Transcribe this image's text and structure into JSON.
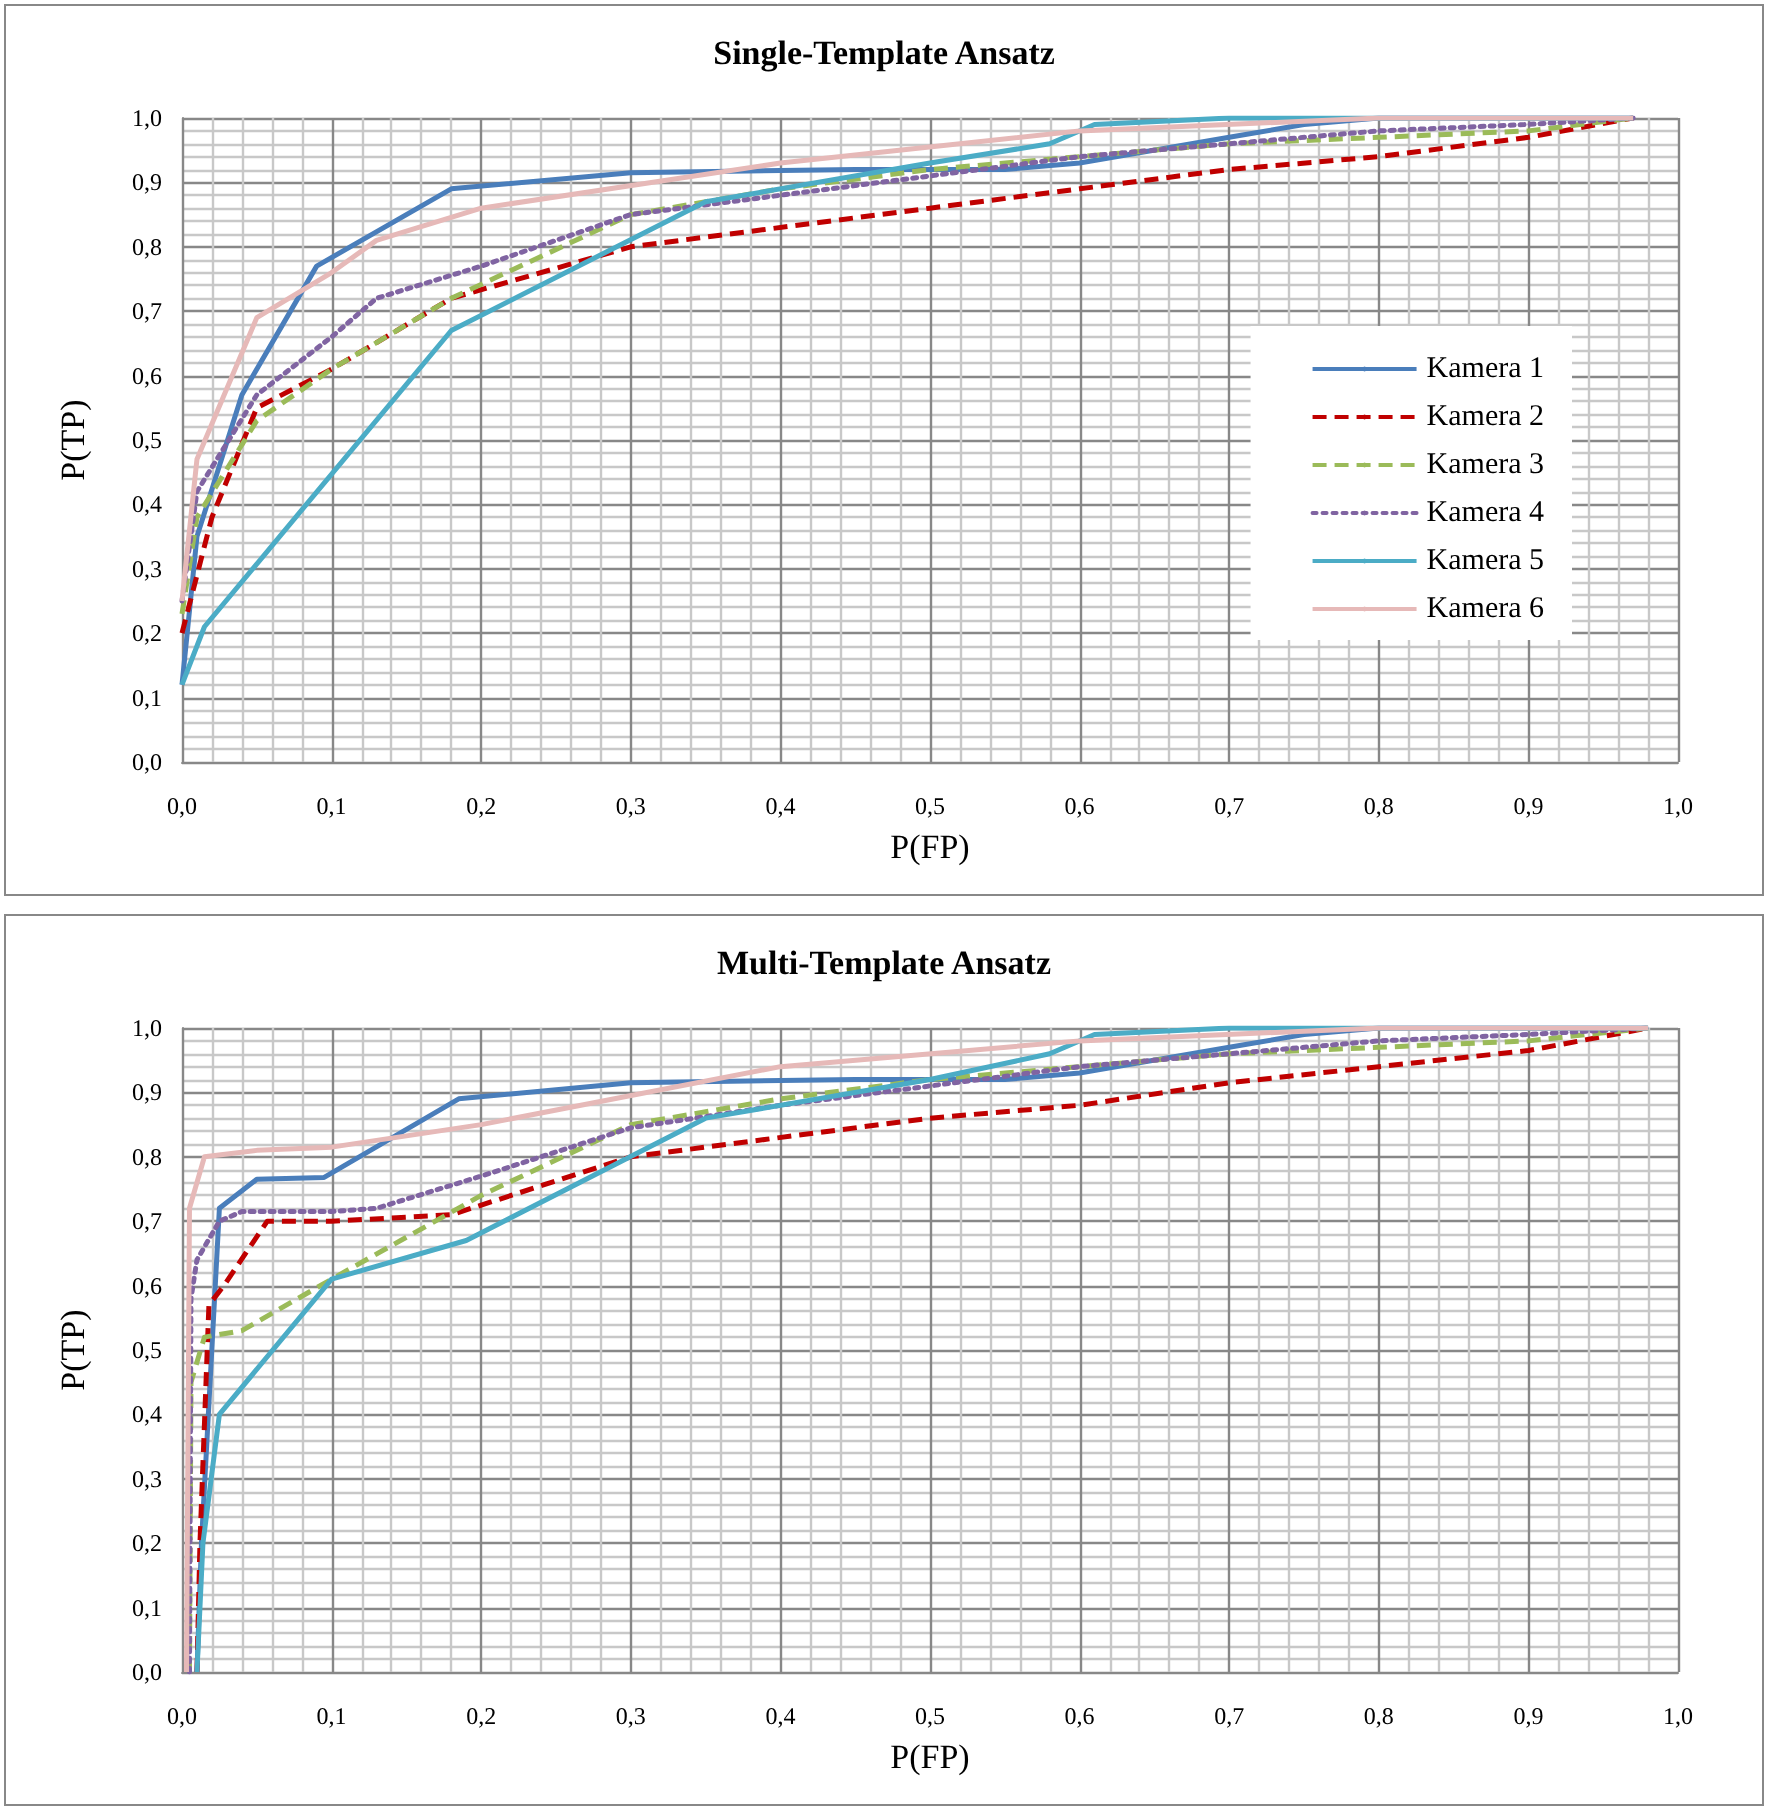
{
  "chart_data": [
    {
      "type": "line",
      "title": "Single-Template Ansatz",
      "xlabel": "P(FP)",
      "ylabel": "P(TP)",
      "xlim": [
        0,
        1
      ],
      "ylim": [
        0,
        1
      ],
      "xticks": [
        {
          "value": 0,
          "label": "0,0"
        },
        {
          "value": 0.1,
          "label": "0,1"
        },
        {
          "value": 0.2,
          "label": "0,2"
        },
        {
          "value": 0.3,
          "label": "0,3"
        },
        {
          "value": 0.4,
          "label": "0,4"
        },
        {
          "value": 0.5,
          "label": "0,5"
        },
        {
          "value": 0.6,
          "label": "0,6"
        },
        {
          "value": 0.7,
          "label": "0,7"
        },
        {
          "value": 0.8,
          "label": "0,8"
        },
        {
          "value": 0.9,
          "label": "0,9"
        },
        {
          "value": 1,
          "label": "1,0"
        }
      ],
      "yticks": [
        {
          "value": 0,
          "label": "0,0"
        },
        {
          "value": 0.1,
          "label": "0,1"
        },
        {
          "value": 0.2,
          "label": "0,2"
        },
        {
          "value": 0.3,
          "label": "0,3"
        },
        {
          "value": 0.4,
          "label": "0,4"
        },
        {
          "value": 0.5,
          "label": "0,5"
        },
        {
          "value": 0.6,
          "label": "0,6"
        },
        {
          "value": 0.7,
          "label": "0,7"
        },
        {
          "value": 0.8,
          "label": "0,8"
        },
        {
          "value": 0.9,
          "label": "0,9"
        },
        {
          "value": 1,
          "label": "1,0"
        }
      ],
      "grid": true,
      "legend": "right",
      "series": [
        {
          "name": "Kamera 1",
          "color": "#4a7ebb",
          "line_style": "solid",
          "x": [
            0,
            0.01,
            0.04,
            0.09,
            0.18,
            0.3,
            0.45,
            0.55,
            0.6,
            0.7,
            0.75,
            0.8,
            0.97
          ],
          "values": [
            0.12,
            0.35,
            0.57,
            0.77,
            0.89,
            0.915,
            0.92,
            0.92,
            0.93,
            0.97,
            0.99,
            1,
            1
          ]
        },
        {
          "name": "Kamera 2",
          "color": "#c00000",
          "line_style": "dashed",
          "x": [
            0,
            0.02,
            0.05,
            0.1,
            0.18,
            0.3,
            0.5,
            0.6,
            0.7,
            0.8,
            0.9,
            0.97
          ],
          "values": [
            0.2,
            0.38,
            0.55,
            0.61,
            0.72,
            0.8,
            0.86,
            0.89,
            0.92,
            0.94,
            0.97,
            1
          ]
        },
        {
          "name": "Kamera 3",
          "color": "#9bbb59",
          "line_style": "dashed",
          "x": [
            0,
            0.01,
            0.05,
            0.1,
            0.18,
            0.3,
            0.4,
            0.5,
            0.6,
            0.7,
            0.8,
            0.9,
            0.97
          ],
          "values": [
            0.23,
            0.38,
            0.53,
            0.61,
            0.72,
            0.85,
            0.89,
            0.92,
            0.94,
            0.96,
            0.97,
            0.98,
            1
          ]
        },
        {
          "name": "Kamera 4",
          "color": "#8064a2",
          "line_style": "dotted",
          "x": [
            0,
            0.01,
            0.05,
            0.1,
            0.13,
            0.2,
            0.3,
            0.4,
            0.5,
            0.6,
            0.7,
            0.8,
            0.9,
            0.97
          ],
          "values": [
            0.25,
            0.42,
            0.57,
            0.66,
            0.72,
            0.77,
            0.85,
            0.88,
            0.91,
            0.94,
            0.96,
            0.98,
            0.99,
            1
          ]
        },
        {
          "name": "Kamera 5",
          "color": "#4bacc6",
          "line_style": "solid",
          "x": [
            0,
            0.015,
            0.18,
            0.35,
            0.5,
            0.58,
            0.61,
            0.7,
            0.97
          ],
          "values": [
            0.12,
            0.21,
            0.67,
            0.87,
            0.93,
            0.96,
            0.99,
            1,
            1
          ]
        },
        {
          "name": "Kamera 6",
          "color": "#e6b9b8",
          "line_style": "solid",
          "x": [
            0,
            0.01,
            0.05,
            0.1,
            0.13,
            0.2,
            0.4,
            0.6,
            0.8,
            0.97
          ],
          "values": [
            0.25,
            0.47,
            0.69,
            0.76,
            0.81,
            0.86,
            0.93,
            0.98,
            1,
            1
          ]
        }
      ]
    },
    {
      "type": "line",
      "title": "Multi-Template Ansatz",
      "xlabel": "P(FP)",
      "ylabel": "P(TP)",
      "xlim": [
        0,
        1
      ],
      "ylim": [
        0,
        1
      ],
      "xticks": [
        {
          "value": 0,
          "label": "0,0"
        },
        {
          "value": 0.1,
          "label": "0,1"
        },
        {
          "value": 0.2,
          "label": "0,2"
        },
        {
          "value": 0.3,
          "label": "0,3"
        },
        {
          "value": 0.4,
          "label": "0,4"
        },
        {
          "value": 0.5,
          "label": "0,5"
        },
        {
          "value": 0.6,
          "label": "0,6"
        },
        {
          "value": 0.7,
          "label": "0,7"
        },
        {
          "value": 0.8,
          "label": "0,8"
        },
        {
          "value": 0.9,
          "label": "0,9"
        },
        {
          "value": 1,
          "label": "1,0"
        }
      ],
      "yticks": [
        {
          "value": 0,
          "label": "0,0"
        },
        {
          "value": 0.1,
          "label": "0,1"
        },
        {
          "value": 0.2,
          "label": "0,2"
        },
        {
          "value": 0.3,
          "label": "0,3"
        },
        {
          "value": 0.4,
          "label": "0,4"
        },
        {
          "value": 0.5,
          "label": "0,5"
        },
        {
          "value": 0.6,
          "label": "0,6"
        },
        {
          "value": 0.7,
          "label": "0,7"
        },
        {
          "value": 0.8,
          "label": "0,8"
        },
        {
          "value": 0.9,
          "label": "0,9"
        },
        {
          "value": 1,
          "label": "1,0"
        }
      ],
      "grid": true,
      "series": [
        {
          "color": "#4a7ebb",
          "line_style": "solid",
          "x": [
            0.01,
            0.013,
            0.025,
            0.05,
            0.095,
            0.185,
            0.3,
            0.45,
            0.55,
            0.6,
            0.7,
            0.75,
            0.8,
            0.98
          ],
          "values": [
            0,
            0.2,
            0.72,
            0.765,
            0.768,
            0.89,
            0.915,
            0.92,
            0.92,
            0.93,
            0.97,
            0.99,
            1,
            1
          ]
        },
        {
          "color": "#c00000",
          "line_style": "dashed",
          "x": [
            0.01,
            0.012,
            0.018,
            0.028,
            0.057,
            0.1,
            0.18,
            0.3,
            0.5,
            0.6,
            0.7,
            0.8,
            0.9,
            0.98
          ],
          "values": [
            0,
            0.2,
            0.57,
            0.6,
            0.7,
            0.7,
            0.71,
            0.8,
            0.86,
            0.88,
            0.915,
            0.94,
            0.965,
            1
          ]
        },
        {
          "color": "#9bbb59",
          "line_style": "dashed",
          "x": [
            0.005,
            0.006,
            0.015,
            0.04,
            0.1,
            0.2,
            0.3,
            0.4,
            0.5,
            0.6,
            0.7,
            0.8,
            0.9,
            0.98
          ],
          "values": [
            0,
            0.45,
            0.52,
            0.53,
            0.61,
            0.74,
            0.85,
            0.89,
            0.92,
            0.94,
            0.96,
            0.97,
            0.98,
            1
          ]
        },
        {
          "color": "#8064a2",
          "line_style": "dotted",
          "x": [
            0.005,
            0.006,
            0.01,
            0.025,
            0.04,
            0.1,
            0.13,
            0.2,
            0.3,
            0.4,
            0.5,
            0.6,
            0.7,
            0.8,
            0.9,
            0.98
          ],
          "values": [
            0,
            0.58,
            0.64,
            0.7,
            0.715,
            0.715,
            0.72,
            0.77,
            0.845,
            0.88,
            0.91,
            0.94,
            0.96,
            0.98,
            0.99,
            1
          ]
        },
        {
          "color": "#4bacc6",
          "line_style": "solid",
          "x": [
            0.01,
            0.014,
            0.025,
            0.1,
            0.19,
            0.35,
            0.5,
            0.58,
            0.61,
            0.7,
            0.98
          ],
          "values": [
            0,
            0.2,
            0.4,
            0.61,
            0.67,
            0.86,
            0.92,
            0.96,
            0.99,
            1,
            1
          ]
        },
        {
          "color": "#e6b9b8",
          "line_style": "solid",
          "x": [
            0.003,
            0.005,
            0.015,
            0.05,
            0.1,
            0.2,
            0.4,
            0.6,
            0.8,
            0.98
          ],
          "values": [
            0,
            0.72,
            0.8,
            0.81,
            0.815,
            0.85,
            0.94,
            0.98,
            1,
            1
          ]
        }
      ]
    }
  ]
}
